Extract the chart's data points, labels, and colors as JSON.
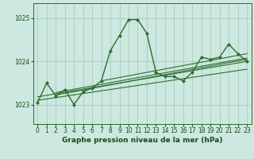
{
  "title": "Graphe pression niveau de la mer (hPa)",
  "background_color": "#cce8e0",
  "grid_color": "#aaccbb",
  "line_color": "#2d6e2d",
  "text_color": "#1a4a1a",
  "ylim": [
    1022.55,
    1025.35
  ],
  "yticks": [
    1023,
    1024,
    1025
  ],
  "xlim": [
    -0.5,
    23.5
  ],
  "xticks": [
    0,
    1,
    2,
    3,
    4,
    5,
    6,
    7,
    8,
    9,
    10,
    11,
    12,
    13,
    14,
    15,
    16,
    17,
    18,
    19,
    20,
    21,
    22,
    23
  ],
  "hours": [
    0,
    1,
    2,
    3,
    4,
    5,
    6,
    7,
    8,
    9,
    10,
    11,
    12,
    13,
    14,
    15,
    16,
    17,
    18,
    19,
    20,
    21,
    22,
    23
  ],
  "pressure": [
    1023.05,
    1023.5,
    1023.2,
    1023.35,
    1023.0,
    1023.3,
    1023.38,
    1023.55,
    1024.25,
    1024.6,
    1024.97,
    1024.97,
    1024.65,
    1023.75,
    1023.65,
    1023.65,
    1023.55,
    1023.75,
    1024.1,
    1024.05,
    1024.1,
    1024.4,
    1024.18,
    1024.0
  ],
  "trend_lines": [
    {
      "x0": 0,
      "x1": 23,
      "y0": 1023.1,
      "y1": 1023.82
    },
    {
      "x0": 0,
      "x1": 23,
      "y0": 1023.18,
      "y1": 1024.0
    },
    {
      "x0": 2,
      "x1": 23,
      "y0": 1023.22,
      "y1": 1024.05
    },
    {
      "x0": 2,
      "x1": 23,
      "y0": 1023.28,
      "y1": 1024.08
    },
    {
      "x0": 7,
      "x1": 23,
      "y0": 1023.55,
      "y1": 1024.18
    }
  ],
  "label_fontsize": 6.5,
  "tick_fontsize": 5.5
}
